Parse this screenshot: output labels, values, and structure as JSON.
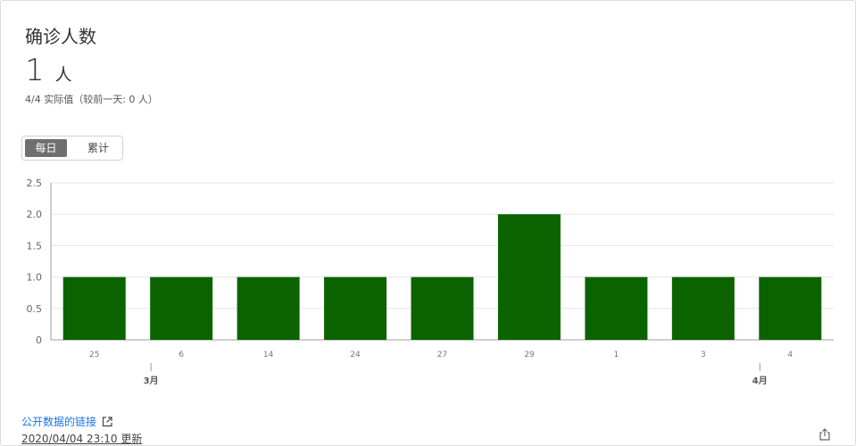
{
  "card": {
    "title": "确诊人数",
    "value": "1",
    "unit": "人",
    "subtitle": "4/4 实际值（较前一天: 0 人）"
  },
  "toggle": {
    "daily_label": "每日",
    "cumulative_label": "累计",
    "selected": "每日"
  },
  "chart_data": {
    "type": "bar",
    "categories": [
      "25",
      "6",
      "14",
      "24",
      "27",
      "29",
      "1",
      "3",
      "4"
    ],
    "month_labels": [
      {
        "label": "3月",
        "category_index": 1
      },
      {
        "label": "4月",
        "category_index": 8
      }
    ],
    "values": [
      1,
      1,
      1,
      1,
      1,
      2,
      1,
      1,
      1
    ],
    "ylim": [
      0,
      2.5
    ],
    "yticks": [
      "0",
      "0.5",
      "1.0",
      "1.5",
      "2.0",
      "2.5"
    ],
    "bar_color": "#0b6300",
    "grid": true,
    "title": "",
    "xlabel": "",
    "ylabel": ""
  },
  "footer": {
    "link_text": "公开数据的链接",
    "updated_text": "2020/04/04 23:10 更新",
    "link_icon": "external-link-icon",
    "share_icon": "share-icon"
  }
}
